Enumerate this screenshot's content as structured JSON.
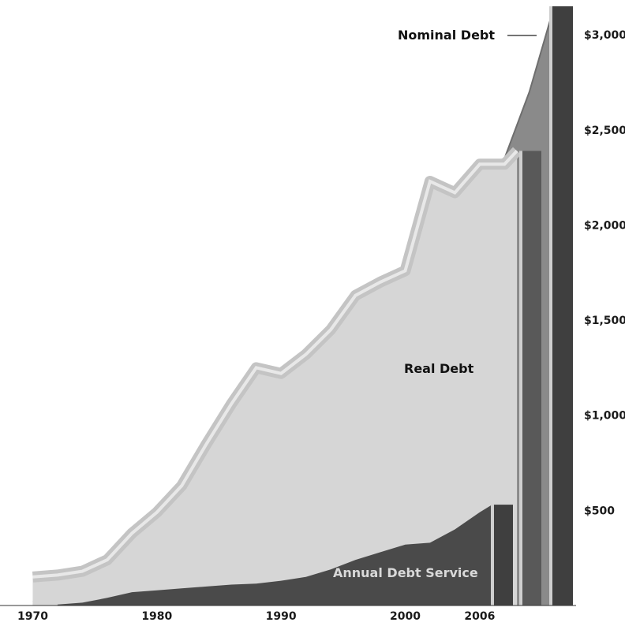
{
  "chart_data": {
    "type": "area",
    "title": "",
    "xlabel": "",
    "ylabel": "",
    "x_ticks": [
      "1970",
      "1980",
      "1990",
      "2000",
      "2006"
    ],
    "y_ticks": [
      "$500",
      "$1,000",
      "$1,500",
      "$2,000",
      "$2,500",
      "$3,000"
    ],
    "xlim": [
      1968,
      2013
    ],
    "ylim": [
      0,
      3150
    ],
    "grid": false,
    "legend": "none",
    "colors": {
      "nominal_debt": "#8a8a8a",
      "real_debt": "#d6d6d6",
      "real_debt_edge": "#c4c4c4",
      "annual_debt_service": "#4a4a4a",
      "bar_dark": "#3f3f3f",
      "bar_mid": "#595959"
    },
    "series": [
      {
        "name": "Nominal Debt",
        "x": [
          1970,
          1972,
          1974,
          1976,
          1978,
          1980,
          1982,
          1984,
          1986,
          1988,
          1990,
          1992,
          1994,
          1996,
          1998,
          2000,
          2002,
          2004,
          2006,
          2008,
          2010,
          2012
        ],
        "values": [
          20,
          40,
          70,
          110,
          170,
          250,
          370,
          520,
          700,
          850,
          980,
          1080,
          1200,
          1400,
          1600,
          1750,
          2100,
          2150,
          2300,
          2350,
          2700,
          3150
        ]
      },
      {
        "name": "Real Debt",
        "x": [
          1970,
          1972,
          1974,
          1976,
          1978,
          1980,
          1982,
          1984,
          1986,
          1988,
          1990,
          1992,
          1994,
          1996,
          1998,
          2000,
          2002,
          2004,
          2006,
          2008,
          2009
        ],
        "values": [
          150,
          160,
          180,
          240,
          380,
          490,
          630,
          850,
          1060,
          1250,
          1220,
          1320,
          1450,
          1630,
          1700,
          1760,
          2230,
          2170,
          2320,
          2320,
          2390
        ]
      },
      {
        "name": "Annual Debt Service",
        "x": [
          1972,
          1974,
          1976,
          1978,
          1980,
          1982,
          1984,
          1986,
          1988,
          1990,
          1992,
          1994,
          1996,
          1998,
          2000,
          2002,
          2004,
          2006,
          2007
        ],
        "values": [
          5,
          15,
          40,
          70,
          80,
          90,
          100,
          110,
          115,
          130,
          150,
          190,
          240,
          280,
          320,
          330,
          400,
          490,
          530
        ]
      }
    ],
    "bars": [
      {
        "series": "Annual Debt Service",
        "value": 530
      },
      {
        "series": "Real Debt",
        "value": 2390
      },
      {
        "series": "Nominal Debt",
        "value": 3150
      }
    ],
    "annotations": [
      {
        "text": "Nominal Debt",
        "series": "Nominal Debt"
      },
      {
        "text": "Real Debt",
        "series": "Real Debt"
      },
      {
        "text": "Annual Debt Service",
        "series": "Annual Debt Service"
      }
    ]
  }
}
